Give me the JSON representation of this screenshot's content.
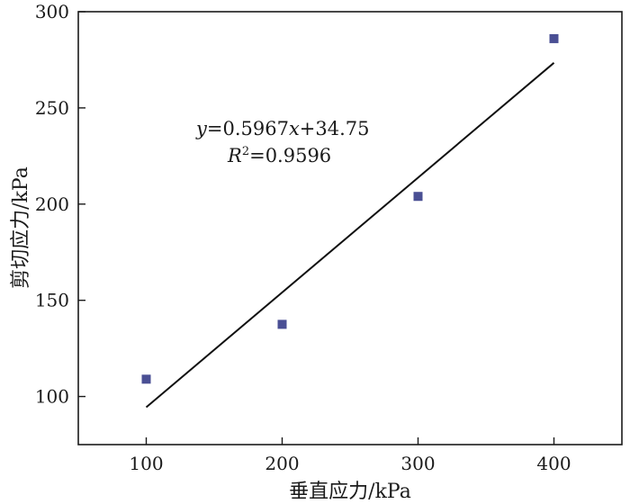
{
  "chart_data": {
    "type": "scatter",
    "xlabel": "垂直应力/kPa",
    "ylabel": "剪切应力/kPa",
    "xlim": [
      50,
      450
    ],
    "ylim": [
      75,
      300
    ],
    "x_ticks": [
      100,
      200,
      300,
      400
    ],
    "y_ticks": [
      100,
      150,
      200,
      250,
      300
    ],
    "grid": false,
    "series": [
      {
        "points": [
          {
            "x": 100,
            "y": 109
          },
          {
            "x": 200,
            "y": 137.5
          },
          {
            "x": 300,
            "y": 204
          },
          {
            "x": 400,
            "y": 286
          }
        ],
        "marker": "square",
        "color": "#4a4f94"
      }
    ],
    "fit": {
      "slope": 0.5967,
      "intercept": 34.75,
      "x_range": [
        100,
        400
      ],
      "color": "#111111"
    },
    "annotation": {
      "equation_var_y": "y",
      "equation_mid": "=0.5967",
      "equation_var_x": "x",
      "equation_end": "+34.75",
      "r2_var": "R",
      "r2_sup": "2",
      "r2_value": "=0.9596"
    }
  }
}
